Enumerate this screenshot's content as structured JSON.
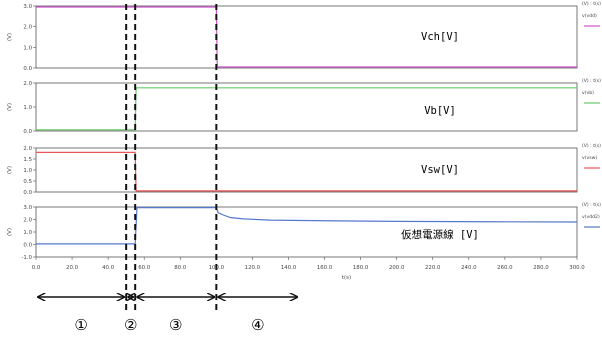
{
  "chart_data": {
    "type": "line",
    "xlabel": "t(s)",
    "xlim": [
      0,
      300
    ],
    "xticks": [
      0,
      20,
      40,
      60,
      80,
      100,
      120,
      140,
      160,
      180,
      200,
      220,
      240,
      260,
      280,
      300
    ],
    "xtick_labels": [
      "0.0",
      "20.0",
      "40.0",
      "60.0",
      "80.0",
      "100.0",
      "120.0",
      "140.0",
      "160.0",
      "180.0",
      "200.0",
      "220.0",
      "240.0",
      "260.0",
      "280.0",
      "300.0"
    ],
    "ylabel": "(V)",
    "panels": [
      {
        "label": "Vch[V]",
        "legend_header": "(V) : t(s)",
        "legend_name": "v(vdd)",
        "color": "#cc55cc",
        "ylim": [
          0,
          3
        ],
        "yticks": [
          0,
          1,
          2,
          3
        ],
        "ytick_labels": [
          "0.0",
          "1.0",
          "2.0",
          "3.0"
        ],
        "x": [
          0,
          100,
          100.5,
          300
        ],
        "y": [
          2.95,
          2.95,
          0.05,
          0.05
        ]
      },
      {
        "label": "Vb[V]",
        "legend_header": "(V) : t(s)",
        "legend_name": "v(vb)",
        "color": "#66cc66",
        "ylim": [
          0,
          2
        ],
        "yticks": [
          0,
          1,
          2
        ],
        "ytick_labels": [
          "0.0",
          "1.0",
          "2.0"
        ],
        "x": [
          0,
          55,
          55.5,
          300
        ],
        "y": [
          0.05,
          0.05,
          1.8,
          1.8
        ]
      },
      {
        "label": "Vsw[V]",
        "legend_header": "(V) : t(s)",
        "legend_name": "v(vsw)",
        "color": "#ee5555",
        "ylim": [
          0,
          2
        ],
        "yticks": [
          0,
          0.5,
          1,
          1.5,
          2
        ],
        "ytick_labels": [
          "0.0",
          "0.5",
          "1.0",
          "1.5",
          "2.0"
        ],
        "x": [
          0,
          55,
          55.5,
          300
        ],
        "y": [
          1.8,
          1.8,
          0.05,
          0.05
        ]
      },
      {
        "label": "仮想電源線 [V]",
        "legend_header": "(V) : t(s)",
        "legend_name": "v(vdd2)",
        "color": "#5577cc",
        "ylim": [
          -1,
          3
        ],
        "yticks": [
          -1,
          0,
          1,
          2,
          3
        ],
        "ytick_labels": [
          "-1.0",
          "0.0",
          "1.0",
          "2.0",
          "3.0"
        ],
        "x": [
          0,
          50,
          55,
          56,
          100,
          101,
          104,
          108,
          115,
          130,
          160,
          200,
          250,
          300
        ],
        "y": [
          0.05,
          0.05,
          0.05,
          2.95,
          2.95,
          2.55,
          2.35,
          2.15,
          2.05,
          1.95,
          1.9,
          1.85,
          1.82,
          1.8
        ]
      }
    ],
    "phase_lines_x": [
      50,
      55,
      100
    ],
    "phases": [
      {
        "label": "①",
        "from": 0,
        "to": 50
      },
      {
        "label": "②",
        "from": 50,
        "to": 55
      },
      {
        "label": "③",
        "from": 55,
        "to": 100
      },
      {
        "label": "④",
        "from": 100,
        "to": 146
      }
    ]
  }
}
